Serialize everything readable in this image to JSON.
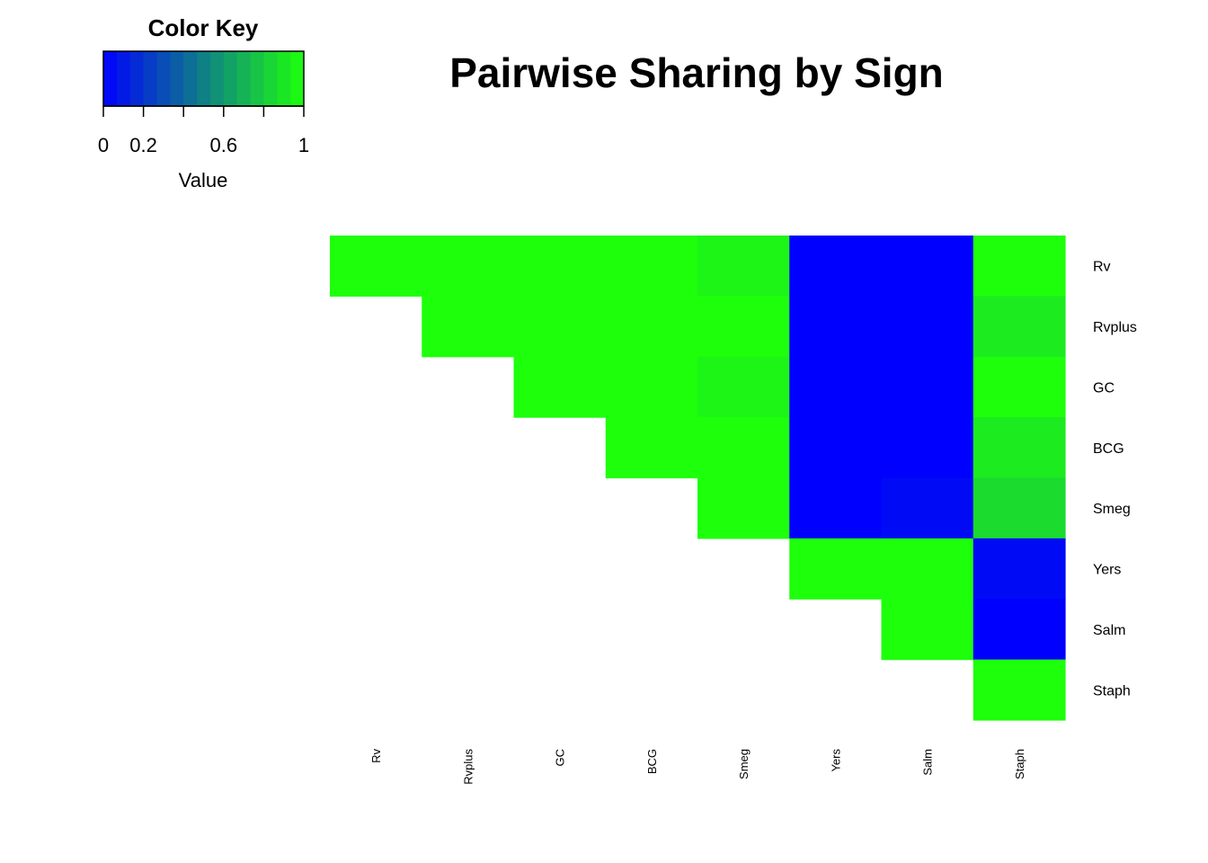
{
  "chart_data": {
    "type": "heatmap",
    "title": "Pairwise Sharing by Sign",
    "rows": [
      "Rv",
      "Rvplus",
      "GC",
      "BCG",
      "Smeg",
      "Yers",
      "Salm",
      "Staph"
    ],
    "columns": [
      "Rv",
      "Rvplus",
      "GC",
      "BCG",
      "Smeg",
      "Yers",
      "Salm",
      "Staph"
    ],
    "values": [
      [
        1,
        1,
        1,
        1,
        0.96,
        0,
        0,
        1
      ],
      [
        null,
        1,
        1,
        1,
        1,
        0,
        0,
        0.92
      ],
      [
        null,
        null,
        1,
        1,
        0.96,
        0,
        0,
        1
      ],
      [
        null,
        null,
        null,
        1,
        1,
        0,
        0,
        0.92
      ],
      [
        null,
        null,
        null,
        null,
        1,
        0,
        0.04,
        0.86
      ],
      [
        null,
        null,
        null,
        null,
        null,
        1,
        1,
        0.04
      ],
      [
        null,
        null,
        null,
        null,
        null,
        null,
        1,
        0
      ],
      [
        null,
        null,
        null,
        null,
        null,
        null,
        null,
        1
      ]
    ],
    "color_low": "#0000ff",
    "color_high": "#1eff0c",
    "color_key": {
      "title": "Color Key",
      "xlabel": "Value",
      "range": [
        0,
        1
      ],
      "tick_labels": [
        "0",
        "0.2",
        "0.6",
        "1"
      ],
      "tick_values": [
        0,
        0.2,
        0.6,
        1
      ],
      "minor_ticks": [
        0.4,
        0.8
      ],
      "bins": 15
    }
  }
}
